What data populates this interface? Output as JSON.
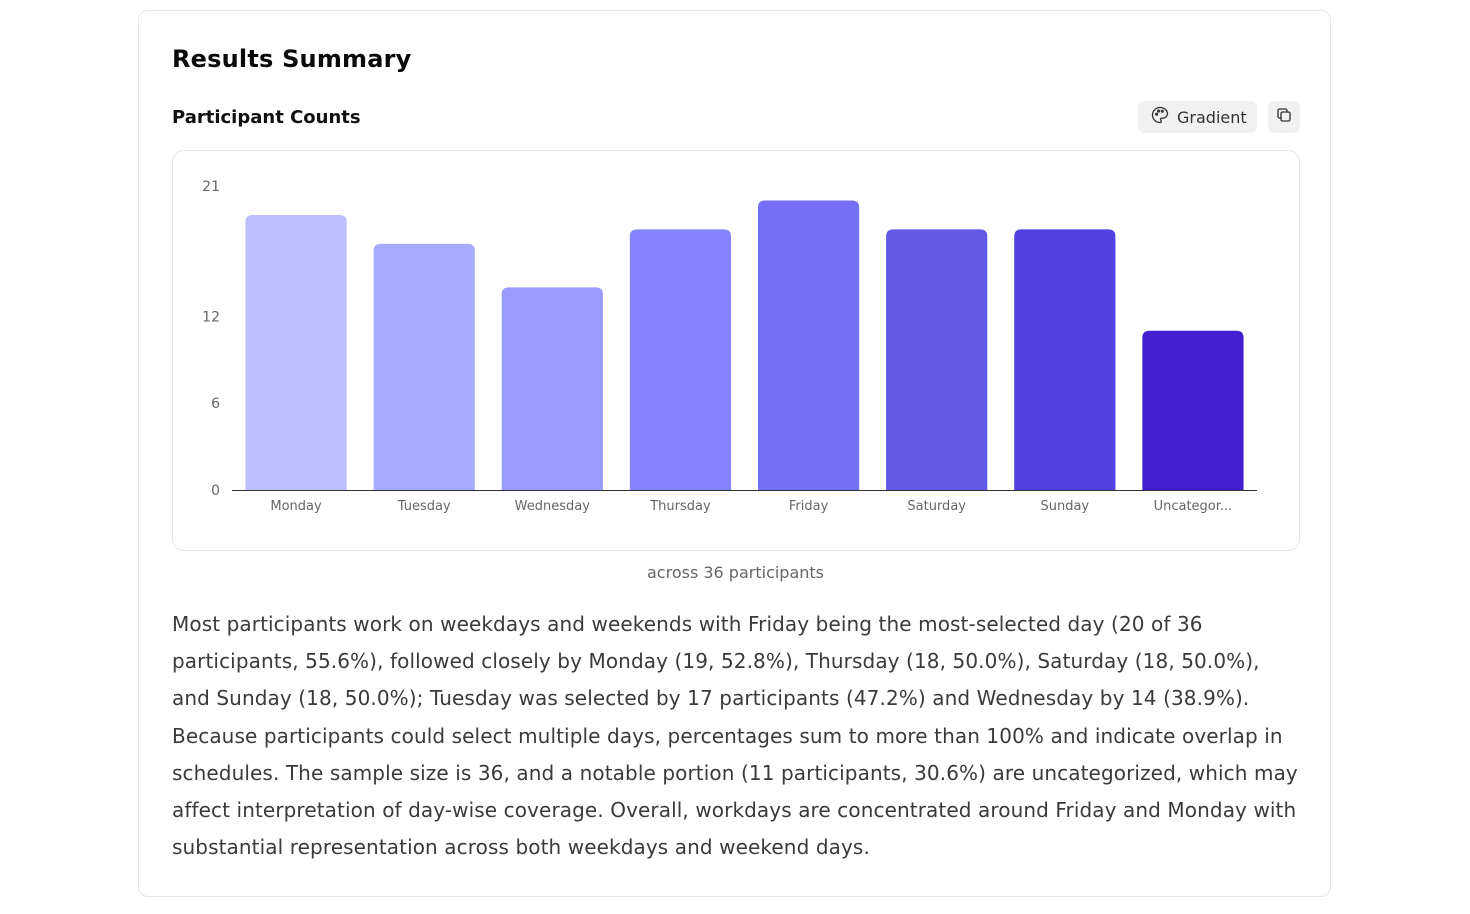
{
  "page": {
    "title": "Results Summary",
    "section_title": "Participant Counts",
    "gradient_label": "Gradient",
    "icons": {
      "gradient": "palette-icon",
      "copy": "copy-icon"
    },
    "caption": "across 36 participants",
    "summary": "Most participants work on weekdays and weekends with Friday being the most-selected day (20 of 36 participants, 55.6%), followed closely by Monday (19, 52.8%), Thursday (18, 50.0%), Saturday (18, 50.0%), and Sunday (18, 50.0%); Tuesday was selected by 17 participants (47.2%) and Wednesday by 14 (38.9%). Because participants could select multiple days, percentages sum to more than 100% and indicate overlap in schedules. The sample size is 36, and a notable portion (11 participants, 30.6%) are uncategorized, which may affect interpretation of day-wise coverage. Overall, workdays are concentrated around Friday and Monday with substantial representation across both weekdays and weekend days."
  },
  "chart_data": {
    "type": "bar",
    "title": "Participant Counts",
    "categories": [
      "Monday",
      "Tuesday",
      "Wednesday",
      "Thursday",
      "Friday",
      "Saturday",
      "Sunday",
      "Uncategor..."
    ],
    "values": [
      19,
      17,
      14,
      18,
      20,
      18,
      18,
      11
    ],
    "colors": [
      "#bcc0ff",
      "#a7abff",
      "#989cff",
      "#8484fe",
      "#7470f6",
      "#625ae6",
      "#5241e0",
      "#421fd0"
    ],
    "yticks": [
      0,
      6,
      12,
      21
    ],
    "ylim": [
      0,
      21
    ],
    "xlabel": "",
    "ylabel": "",
    "grid": false,
    "legend": "none"
  }
}
